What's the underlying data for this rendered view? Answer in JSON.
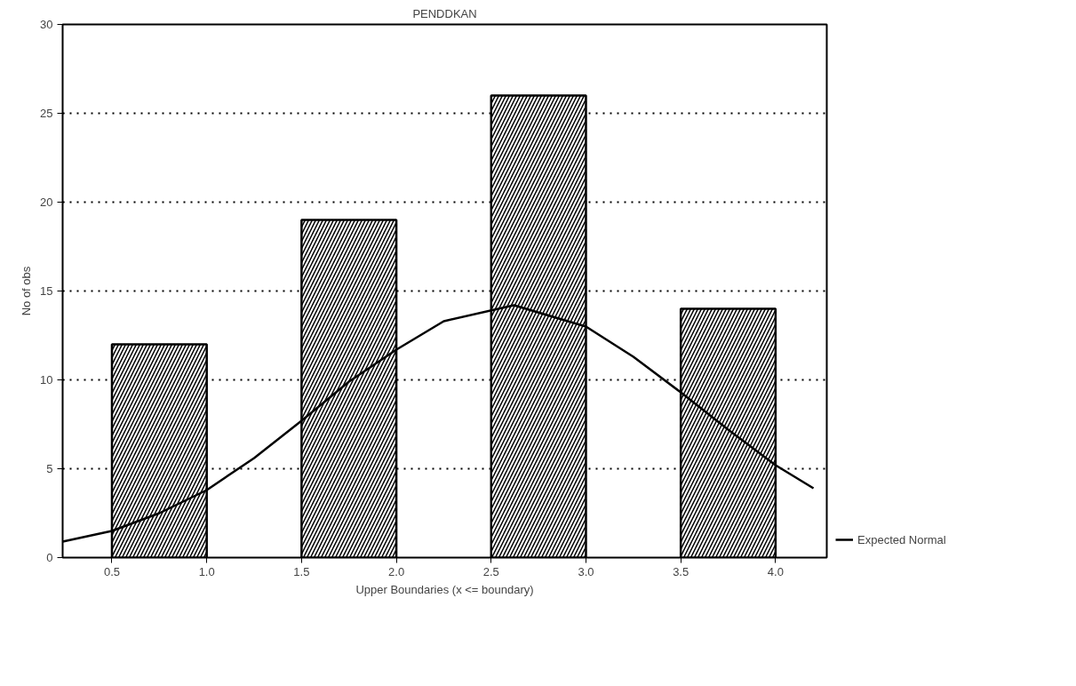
{
  "chart_data": {
    "type": "histogram",
    "title": "PENDDKAN",
    "xlabel": "Upper Boundaries (x <= boundary)",
    "ylabel": "No of obs",
    "bins": [
      0.5,
      1.0,
      1.5,
      2.0,
      2.5,
      3.0,
      3.5,
      4.0
    ],
    "values": [
      12,
      0,
      19,
      0,
      26,
      0,
      14
    ],
    "color": "#000000",
    "series": [
      {
        "type": "line",
        "name": "Expected Normal",
        "color": "#000000",
        "x": [
          0.24,
          0.5,
          0.75,
          1.0,
          1.25,
          1.5,
          1.75,
          2.0,
          2.25,
          2.62,
          3.0,
          3.25,
          3.5,
          3.75,
          4.0,
          4.2
        ],
        "values": [
          0.9,
          1.5,
          2.5,
          3.8,
          5.6,
          7.7,
          9.9,
          11.7,
          13.3,
          14.2,
          13.0,
          11.3,
          9.3,
          7.2,
          5.2,
          3.9
        ]
      }
    ],
    "xlim": [
      0.24,
      4.27
    ],
    "xticks": [
      0.5,
      {
        "value": 1.0,
        "label": "1.0"
      },
      1.5,
      {
        "value": 2.0,
        "label": "2.0"
      },
      2.5,
      {
        "value": 3.0,
        "label": "3.0"
      },
      3.5,
      {
        "value": 4.0,
        "label": "4.0"
      }
    ],
    "ylim": [
      0,
      30
    ],
    "yticks": [
      0,
      5,
      10,
      15,
      20,
      25,
      30
    ],
    "grid": "y",
    "legend": "right",
    "line_style": "solid"
  }
}
